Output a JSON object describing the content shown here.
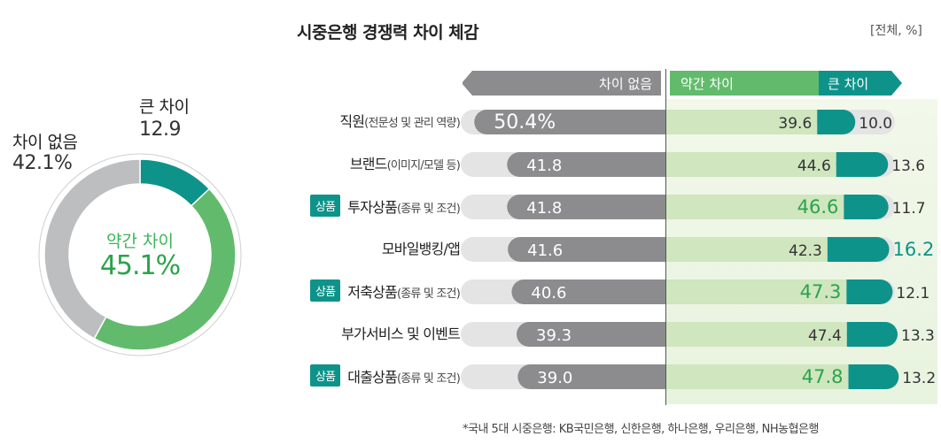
{
  "donut": {
    "segments": [
      {
        "name": "큰 차이",
        "value": 12.9,
        "value_label": "12.9",
        "color": "#0e938a"
      },
      {
        "name": "약간 차이",
        "value": 45.1,
        "value_label": "45.1%",
        "color": "#62bb6c"
      },
      {
        "name": "차이 없음",
        "value": 42.1,
        "value_label": "42.1%",
        "color": "#bcbec0"
      }
    ]
  },
  "title": "시중은행 경쟁력 차이 체감",
  "unit": "[전체, %]",
  "legend": {
    "none": "차이 없음",
    "some": "약간 차이",
    "big": "큰 차이"
  },
  "footnote": "*국내 5대 시중은행: KB국민은행, 신한은행, 하나은행, 우리은행, NH농협은행",
  "rows": [
    {
      "tag": "",
      "label": "직원",
      "sub": "(전문성 및 관리 역량)"
    },
    {
      "tag": "",
      "label": "브랜드",
      "sub": "(이미지/모델 등)"
    },
    {
      "tag": "상품",
      "label": "투자상품",
      "sub": "(종류 및 조건)"
    },
    {
      "tag": "",
      "label": "모바일뱅킹/앱",
      "sub": ""
    },
    {
      "tag": "상품",
      "label": "저축상품",
      "sub": "(종류 및 조건)"
    },
    {
      "tag": "",
      "label": "부가서비스 및 이벤트",
      "sub": ""
    },
    {
      "tag": "상품",
      "label": "대출상품",
      "sub": "(종류 및 조건)"
    }
  ],
  "chart_data": {
    "type": "bar",
    "categories": [
      "직원(전문성 및 관리 역량)",
      "브랜드(이미지/모델 등)",
      "투자상품(종류 및 조건)",
      "모바일뱅킹/앱",
      "저축상품(종류 및 조건)",
      "부가서비스 및 이벤트",
      "대출상품(종류 및 조건)"
    ],
    "series": [
      {
        "name": "차이 없음",
        "values": [
          50.4,
          41.8,
          41.8,
          41.6,
          40.6,
          39.3,
          39.0
        ],
        "color": "#8c8c8e"
      },
      {
        "name": "약간 차이",
        "values": [
          39.6,
          44.6,
          46.6,
          42.3,
          47.3,
          47.4,
          47.8
        ],
        "color": "#62bb6c"
      },
      {
        "name": "큰 차이",
        "values": [
          10.0,
          13.6,
          11.7,
          16.2,
          12.1,
          13.3,
          13.2
        ],
        "color": "#0e938a"
      }
    ],
    "highlight_some": [
      false,
      false,
      true,
      false,
      true,
      false,
      true
    ],
    "highlight_big": [
      false,
      false,
      false,
      true,
      false,
      false,
      false
    ],
    "title": "시중은행 경쟁력 차이 체감",
    "ylabel": "",
    "xlabel": ""
  }
}
